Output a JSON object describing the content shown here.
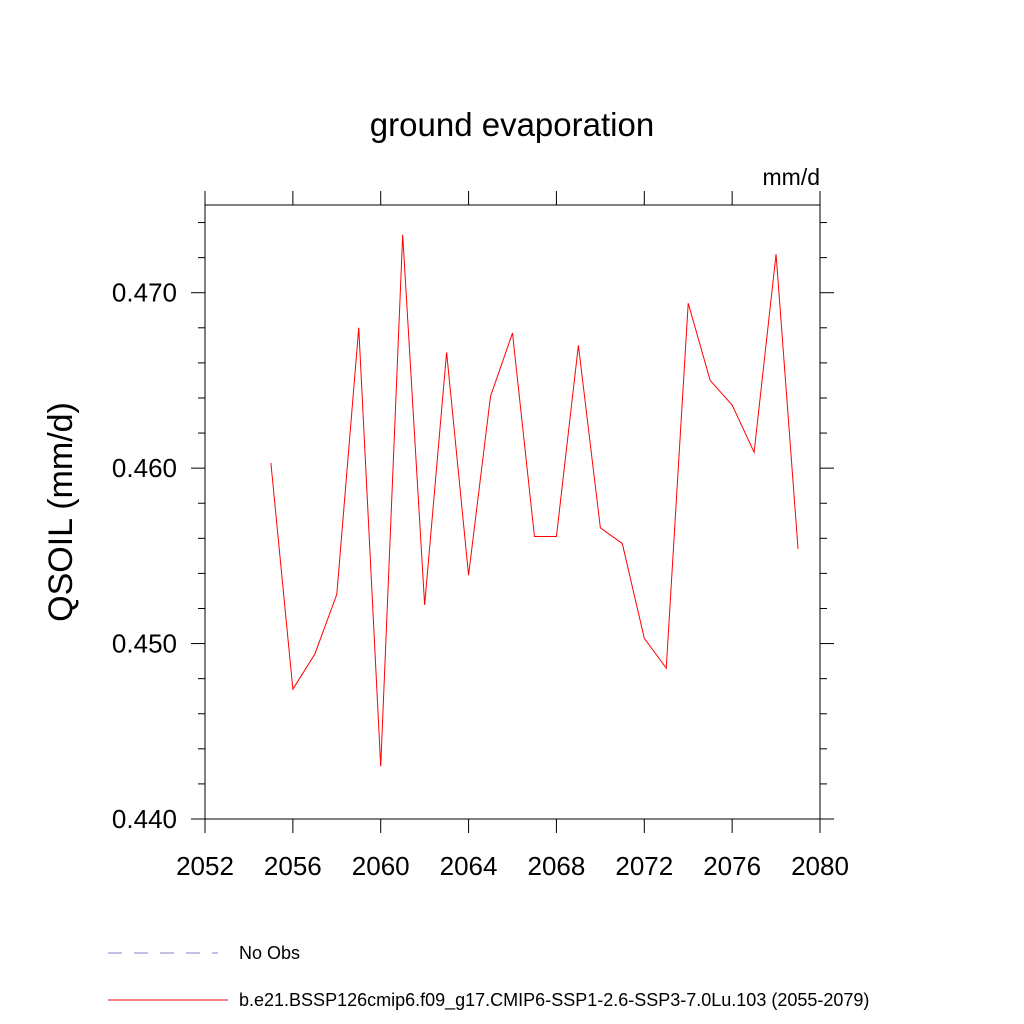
{
  "chart_data": {
    "type": "line",
    "title": "ground evaporation",
    "units": "mm/d",
    "xlabel": "",
    "ylabel": "QSOIL  (mm/d)",
    "xlim": [
      2052,
      2080
    ],
    "ylim": [
      0.44,
      0.475
    ],
    "x_ticks": [
      2052,
      2056,
      2060,
      2064,
      2068,
      2072,
      2076,
      2080
    ],
    "y_ticks": [
      0.44,
      0.45,
      0.46,
      0.47
    ],
    "y_tick_labels": [
      "0.440",
      "0.450",
      "0.460",
      "0.470"
    ],
    "series": [
      {
        "name": "b.e21.BSSP126cmip6.f09_g17.CMIP6-SSP1-2.6-SSP3-7.0Lu.103 (2055-2079)",
        "color": "#ff0000",
        "x": [
          2055,
          2056,
          2057,
          2058,
          2059,
          2060,
          2061,
          2062,
          2063,
          2064,
          2065,
          2066,
          2067,
          2068,
          2069,
          2070,
          2071,
          2072,
          2073,
          2074,
          2075,
          2076,
          2077,
          2078,
          2079
        ],
        "values": [
          0.4603,
          0.4474,
          0.4494,
          0.4528,
          0.468,
          0.443,
          0.4733,
          0.4522,
          0.4666,
          0.4539,
          0.4641,
          0.4677,
          0.4561,
          0.4561,
          0.467,
          0.4566,
          0.4557,
          0.4503,
          0.4486,
          0.4694,
          0.465,
          0.4636,
          0.4609,
          0.4722,
          0.4554
        ]
      }
    ],
    "legend": [
      {
        "label": "No Obs",
        "style": "dashed",
        "color": "#8080c0"
      },
      {
        "label": "b.e21.BSSP126cmip6.f09_g17.CMIP6-SSP1-2.6-SSP3-7.0Lu.103 (2055-2079)",
        "style": "solid",
        "color": "#ff0000"
      }
    ]
  }
}
